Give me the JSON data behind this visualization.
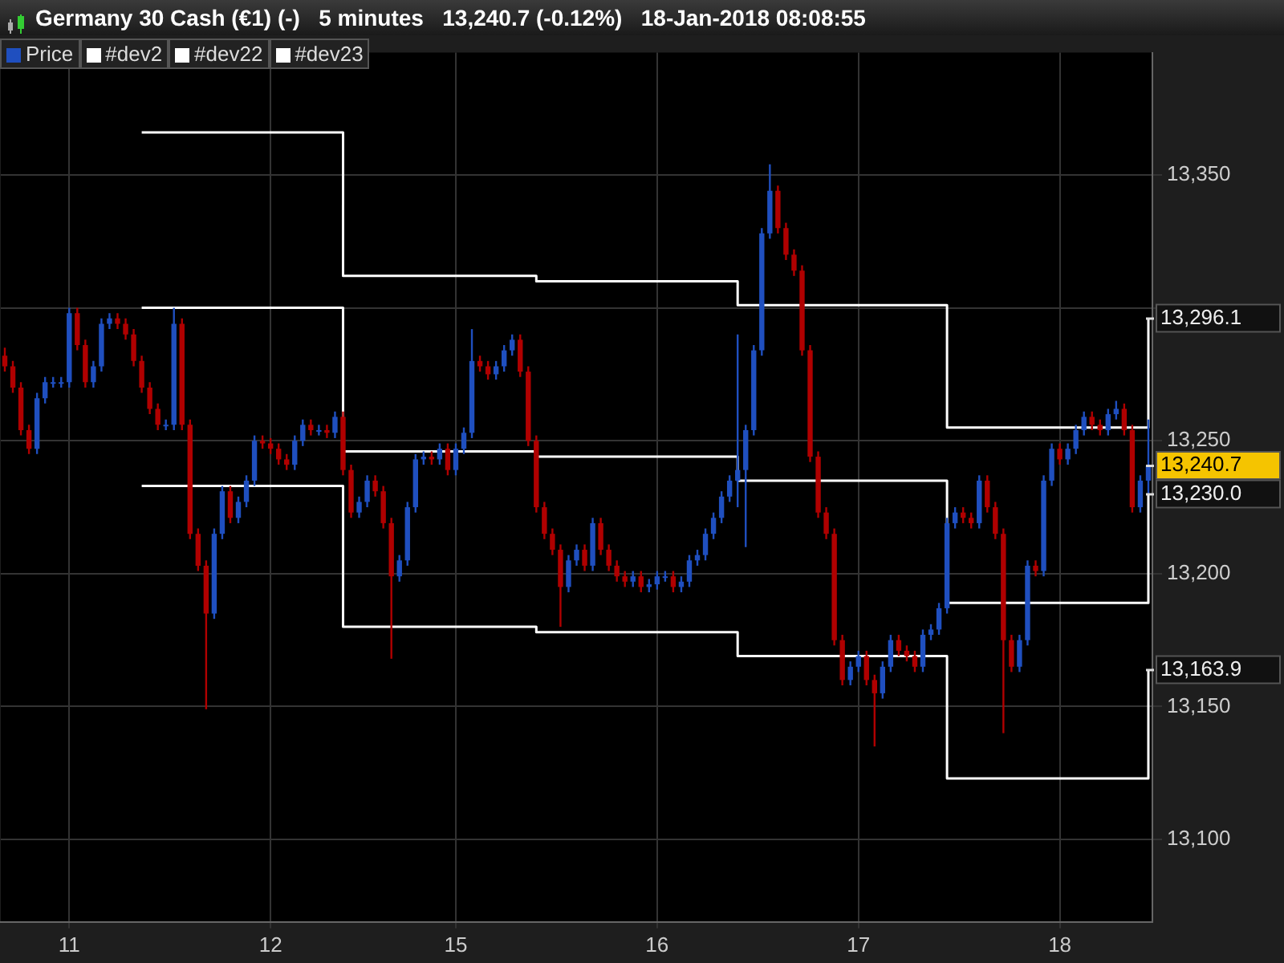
{
  "chart_data": {
    "type": "candlestick",
    "title": "Germany 30 Cash (€1) (-)   5 minutes   13,240.7 (-0.12%)   18-Jan-2018 08:08:55",
    "categories": [
      null,
      null,
      null,
      null,
      null,
      null,
      null,
      null,
      "11",
      null,
      null,
      null,
      null,
      null,
      null,
      null,
      null,
      null,
      null,
      null,
      null,
      null,
      null,
      null,
      null,
      null,
      null,
      null,
      null,
      null,
      null,
      null,
      null,
      "12",
      null,
      null,
      null,
      null,
      null,
      null,
      null,
      null,
      null,
      null,
      null,
      null,
      null,
      null,
      null,
      null,
      null,
      null,
      null,
      null,
      null,
      null,
      "15",
      null,
      null,
      null,
      null,
      null,
      null,
      null,
      null,
      null,
      null,
      null,
      null,
      null,
      null,
      null,
      null,
      null,
      null,
      null,
      null,
      null,
      null,
      null,
      null,
      "16",
      null,
      null,
      null,
      null,
      null,
      null,
      null,
      null,
      null,
      null,
      null,
      null,
      null,
      null,
      null,
      null,
      null,
      null,
      null,
      null,
      null,
      null,
      null,
      null,
      "17",
      null,
      null,
      null,
      null,
      null,
      null,
      null,
      null,
      null,
      null,
      null,
      null,
      null,
      null,
      null,
      null,
      null,
      null,
      null,
      null,
      null,
      null,
      null,
      null,
      "18",
      null,
      null,
      null,
      null,
      null,
      null,
      null,
      null,
      null,
      null,
      null
    ],
    "ylim": [
      13069,
      13396
    ],
    "yticks": [
      {
        "value": 13100,
        "label": "13,100"
      },
      {
        "value": 13150,
        "label": "13,150"
      },
      {
        "value": 13200,
        "label": "13,200"
      },
      {
        "value": 13250,
        "label": "13,250"
      },
      {
        "value": 13300,
        "label": null
      },
      {
        "value": 13350,
        "label": "13,350"
      }
    ],
    "grid": true,
    "legend": "top left",
    "series": [
      {
        "name": "Price",
        "color": "#1f4fbf",
        "value_labels": [
          null,
          null,
          null,
          null,
          null,
          null,
          null,
          null,
          null,
          null,
          null,
          null,
          null,
          null,
          null,
          null,
          null,
          null,
          null,
          null,
          null,
          null,
          null,
          null,
          null,
          null,
          null,
          null,
          null,
          null,
          null,
          null,
          null,
          null,
          null,
          null,
          null,
          null,
          null,
          null,
          null,
          null,
          null,
          null,
          null,
          null,
          null,
          null,
          null,
          null,
          null,
          null,
          null,
          null,
          null,
          null,
          null,
          null,
          null,
          null,
          null,
          null,
          null,
          null,
          null,
          null,
          null,
          null,
          null,
          null,
          null,
          null,
          null,
          null,
          null,
          null,
          null,
          null,
          null,
          null,
          null,
          null,
          null,
          null,
          null,
          null,
          null,
          null,
          null,
          null,
          null,
          null,
          null,
          null,
          null,
          null,
          null,
          null,
          null,
          null,
          null,
          null,
          null,
          null,
          null,
          null,
          null,
          null,
          null,
          null,
          null,
          null,
          null,
          null,
          null,
          null,
          null,
          null,
          null,
          null,
          null,
          null,
          null,
          null,
          null,
          null,
          null,
          null,
          null,
          null,
          null,
          null,
          null,
          null,
          null,
          null,
          null,
          null,
          null,
          null,
          null,
          null,
          "13,240.7"
        ],
        "ohlc": [
          [
            13282,
            13285,
            13276,
            13278
          ],
          [
            13278,
            13280,
            13268,
            13270
          ],
          [
            13270,
            13272,
            13252,
            13254
          ],
          [
            13254,
            13256,
            13245,
            13247
          ],
          [
            13247,
            13268,
            13245,
            13266
          ],
          [
            13266,
            13274,
            13264,
            13272
          ],
          [
            13272,
            13274,
            13270,
            13272
          ],
          [
            13272,
            13274,
            13270,
            13272
          ],
          [
            13272,
            13300,
            13270,
            13298
          ],
          [
            13298,
            13300,
            13284,
            13286
          ],
          [
            13286,
            13288,
            13270,
            13272
          ],
          [
            13272,
            13280,
            13270,
            13278
          ],
          [
            13278,
            13296,
            13276,
            13294
          ],
          [
            13294,
            13298,
            13292,
            13296
          ],
          [
            13296,
            13298,
            13292,
            13294
          ],
          [
            13294,
            13296,
            13288,
            13290
          ],
          [
            13290,
            13292,
            13278,
            13280
          ],
          [
            13280,
            13282,
            13268,
            13270
          ],
          [
            13270,
            13272,
            13260,
            13262
          ],
          [
            13262,
            13264,
            13254,
            13256
          ],
          [
            13256,
            13258,
            13254,
            13256
          ],
          [
            13256,
            13300,
            13254,
            13294
          ],
          [
            13294,
            13296,
            13254,
            13256
          ],
          [
            13256,
            13258,
            13213,
            13215
          ],
          [
            13215,
            13217,
            13201,
            13203
          ],
          [
            13203,
            13205,
            13149,
            13185
          ],
          [
            13185,
            13217,
            13183,
            13215
          ],
          [
            13215,
            13233,
            13213,
            13231
          ],
          [
            13231,
            13233,
            13219,
            13221
          ],
          [
            13221,
            13229,
            13219,
            13227
          ],
          [
            13227,
            13237,
            13225,
            13235
          ],
          [
            13235,
            13252,
            13233,
            13250
          ],
          [
            13250,
            13252,
            13247,
            13249
          ],
          [
            13249,
            13251,
            13245,
            13247
          ],
          [
            13247,
            13249,
            13241,
            13243
          ],
          [
            13243,
            13245,
            13239,
            13241
          ],
          [
            13241,
            13252,
            13239,
            13250
          ],
          [
            13250,
            13258,
            13248,
            13256
          ],
          [
            13256,
            13258,
            13252,
            13254
          ],
          [
            13254,
            13256,
            13252,
            13254
          ],
          [
            13254,
            13256,
            13251,
            13253
          ],
          [
            13253,
            13261,
            13251,
            13259
          ],
          [
            13259,
            13261,
            13237,
            13239
          ],
          [
            13239,
            13241,
            13221,
            13223
          ],
          [
            13223,
            13229,
            13221,
            13227
          ],
          [
            13227,
            13237,
            13225,
            13235
          ],
          [
            13235,
            13237,
            13229,
            13231
          ],
          [
            13231,
            13233,
            13217,
            13219
          ],
          [
            13219,
            13221,
            13168,
            13199
          ],
          [
            13199,
            13207,
            13197,
            13205
          ],
          [
            13205,
            13227,
            13203,
            13225
          ],
          [
            13225,
            13245,
            13223,
            13243
          ],
          [
            13243,
            13246,
            13241,
            13244
          ],
          [
            13244,
            13246,
            13241,
            13243
          ],
          [
            13243,
            13249,
            13241,
            13247
          ],
          [
            13247,
            13249,
            13237,
            13239
          ],
          [
            13239,
            13249,
            13237,
            13247
          ],
          [
            13247,
            13255,
            13245,
            13253
          ],
          [
            13253,
            13292,
            13251,
            13280
          ],
          [
            13280,
            13282,
            13276,
            13278
          ],
          [
            13278,
            13280,
            13273,
            13275
          ],
          [
            13275,
            13280,
            13273,
            13278
          ],
          [
            13278,
            13286,
            13276,
            13284
          ],
          [
            13284,
            13290,
            13282,
            13288
          ],
          [
            13288,
            13290,
            13274,
            13276
          ],
          [
            13276,
            13278,
            13248,
            13250
          ],
          [
            13250,
            13252,
            13223,
            13225
          ],
          [
            13225,
            13227,
            13213,
            13215
          ],
          [
            13215,
            13217,
            13207,
            13209
          ],
          [
            13209,
            13211,
            13180,
            13195
          ],
          [
            13195,
            13207,
            13193,
            13205
          ],
          [
            13205,
            13211,
            13203,
            13209
          ],
          [
            13209,
            13211,
            13201,
            13203
          ],
          [
            13203,
            13221,
            13201,
            13219
          ],
          [
            13219,
            13221,
            13207,
            13209
          ],
          [
            13209,
            13211,
            13201,
            13203
          ],
          [
            13203,
            13205,
            13197,
            13199
          ],
          [
            13199,
            13201,
            13195,
            13197
          ],
          [
            13197,
            13201,
            13195,
            13199
          ],
          [
            13199,
            13201,
            13193,
            13195
          ],
          [
            13195,
            13198,
            13193,
            13196
          ],
          [
            13196,
            13201,
            13194,
            13199
          ],
          [
            13199,
            13201,
            13197,
            13199
          ],
          [
            13199,
            13201,
            13193,
            13195
          ],
          [
            13195,
            13199,
            13193,
            13197
          ],
          [
            13197,
            13207,
            13195,
            13205
          ],
          [
            13205,
            13209,
            13203,
            13207
          ],
          [
            13207,
            13217,
            13205,
            13215
          ],
          [
            13215,
            13223,
            13213,
            13221
          ],
          [
            13221,
            13231,
            13219,
            13229
          ],
          [
            13229,
            13237,
            13227,
            13235
          ],
          [
            13235,
            13290,
            13225,
            13239
          ],
          [
            13239,
            13256,
            13210,
            13254
          ],
          [
            13254,
            13286,
            13252,
            13284
          ],
          [
            13284,
            13330,
            13282,
            13328
          ],
          [
            13328,
            13354,
            13326,
            13344
          ],
          [
            13344,
            13346,
            13328,
            13330
          ],
          [
            13330,
            13332,
            13318,
            13320
          ],
          [
            13320,
            13322,
            13312,
            13314
          ],
          [
            13314,
            13316,
            13282,
            13284
          ],
          [
            13284,
            13286,
            13242,
            13244
          ],
          [
            13244,
            13246,
            13221,
            13223
          ],
          [
            13223,
            13225,
            13213,
            13215
          ],
          [
            13215,
            13217,
            13173,
            13175
          ],
          [
            13175,
            13177,
            13158,
            13160
          ],
          [
            13160,
            13167,
            13158,
            13165
          ],
          [
            13165,
            13171,
            13163,
            13169
          ],
          [
            13169,
            13171,
            13158,
            13160
          ],
          [
            13160,
            13162,
            13135,
            13155
          ],
          [
            13155,
            13167,
            13153,
            13165
          ],
          [
            13165,
            13177,
            13163,
            13175
          ],
          [
            13175,
            13177,
            13169,
            13171
          ],
          [
            13171,
            13173,
            13167,
            13169
          ],
          [
            13169,
            13171,
            13163,
            13165
          ],
          [
            13165,
            13179,
            13163,
            13177
          ],
          [
            13177,
            13181,
            13175,
            13179
          ],
          [
            13179,
            13189,
            13177,
            13187
          ],
          [
            13187,
            13221,
            13185,
            13219
          ],
          [
            13219,
            13225,
            13217,
            13223
          ],
          [
            13223,
            13225,
            13219,
            13221
          ],
          [
            13221,
            13223,
            13217,
            13219
          ],
          [
            13219,
            13237,
            13217,
            13235
          ],
          [
            13235,
            13237,
            13223,
            13225
          ],
          [
            13225,
            13227,
            13213,
            13215
          ],
          [
            13215,
            13217,
            13140,
            13175
          ],
          [
            13175,
            13177,
            13163,
            13165
          ],
          [
            13165,
            13177,
            13163,
            13175
          ],
          [
            13175,
            13205,
            13173,
            13203
          ],
          [
            13203,
            13205,
            13199,
            13201
          ],
          [
            13201,
            13237,
            13199,
            13235
          ],
          [
            13235,
            13249,
            13233,
            13247
          ],
          [
            13247,
            13249,
            13241,
            13243
          ],
          [
            13243,
            13249,
            13241,
            13247
          ],
          [
            13247,
            13256,
            13245,
            13254
          ],
          [
            13254,
            13261,
            13252,
            13259
          ],
          [
            13259,
            13261,
            13254,
            13256
          ],
          [
            13256,
            13258,
            13252,
            13254
          ],
          [
            13254,
            13262,
            13252,
            13260
          ],
          [
            13260,
            13265,
            13258,
            13262
          ],
          [
            13262,
            13264,
            13252,
            13254
          ],
          [
            13254,
            13256,
            13223,
            13225
          ],
          [
            13225,
            13237,
            13223,
            13235
          ],
          [
            13235,
            13258,
            13230,
            13240.7
          ]
        ],
        "colors": [
          "#b00000",
          "#b00000",
          "#b00000",
          "#b00000",
          "#1f4fbf",
          "#1f4fbf",
          "#1f4fbf",
          "#1f4fbf",
          "#1f4fbf",
          "#b00000",
          "#b00000",
          "#1f4fbf",
          "#1f4fbf",
          "#1f4fbf",
          "#b00000",
          "#b00000",
          "#b00000",
          "#b00000",
          "#b00000",
          "#b00000",
          "#1f4fbf",
          "#1f4fbf",
          "#b00000",
          "#b00000",
          "#b00000",
          "#b00000",
          "#1f4fbf",
          "#1f4fbf",
          "#b00000",
          "#1f4fbf",
          "#1f4fbf",
          "#1f4fbf",
          "#b00000",
          "#b00000",
          "#b00000",
          "#b00000",
          "#1f4fbf",
          "#1f4fbf",
          "#b00000",
          "#1f4fbf",
          "#b00000",
          "#1f4fbf",
          "#b00000",
          "#b00000",
          "#1f4fbf",
          "#1f4fbf",
          "#b00000",
          "#b00000",
          "#b00000",
          "#1f4fbf",
          "#1f4fbf",
          "#1f4fbf",
          "#1f4fbf",
          "#b00000",
          "#1f4fbf",
          "#b00000",
          "#1f4fbf",
          "#1f4fbf",
          "#1f4fbf",
          "#b00000",
          "#b00000",
          "#1f4fbf",
          "#1f4fbf",
          "#1f4fbf",
          "#b00000",
          "#b00000",
          "#b00000",
          "#b00000",
          "#b00000",
          "#b00000",
          "#1f4fbf",
          "#1f4fbf",
          "#b00000",
          "#1f4fbf",
          "#b00000",
          "#b00000",
          "#b00000",
          "#b00000",
          "#1f4fbf",
          "#b00000",
          "#1f4fbf",
          "#1f4fbf",
          "#1f4fbf",
          "#b00000",
          "#1f4fbf",
          "#1f4fbf",
          "#1f4fbf",
          "#1f4fbf",
          "#1f4fbf",
          "#1f4fbf",
          "#1f4fbf",
          "#1f4fbf",
          "#1f4fbf",
          "#1f4fbf",
          "#1f4fbf",
          "#1f4fbf",
          "#b00000",
          "#b00000",
          "#b00000",
          "#b00000",
          "#b00000",
          "#b00000",
          "#b00000",
          "#b00000",
          "#b00000",
          "#1f4fbf",
          "#1f4fbf",
          "#b00000",
          "#b00000",
          "#1f4fbf",
          "#1f4fbf",
          "#b00000",
          "#b00000",
          "#b00000",
          "#1f4fbf",
          "#1f4fbf",
          "#1f4fbf",
          "#1f4fbf",
          "#1f4fbf",
          "#b00000",
          "#b00000",
          "#1f4fbf",
          "#b00000",
          "#b00000",
          "#b00000",
          "#b00000",
          "#1f4fbf",
          "#1f4fbf",
          "#b00000",
          "#1f4fbf",
          "#1f4fbf",
          "#b00000",
          "#1f4fbf",
          "#1f4fbf",
          "#1f4fbf",
          "#b00000",
          "#b00000",
          "#1f4fbf",
          "#1f4fbf",
          "#b00000",
          "#b00000",
          "#1f4fbf",
          "#1f4fbf"
        ]
      },
      {
        "name": "#dev2",
        "type": "step",
        "color": "#ffffff",
        "value_labels": [
          null,
          null,
          null,
          null,
          null,
          null,
          null,
          null,
          null,
          null,
          null,
          null,
          null,
          null,
          null,
          null,
          null,
          null,
          null,
          null,
          null,
          null,
          null,
          null,
          null,
          null,
          null,
          null,
          null,
          null,
          null,
          null,
          null,
          null,
          null,
          null,
          null,
          null,
          null,
          null,
          null,
          null,
          null,
          null,
          null,
          null,
          null,
          null,
          null,
          null,
          null,
          null,
          null,
          null,
          null,
          null,
          null,
          null,
          null,
          null,
          null,
          null,
          null,
          null,
          null,
          null,
          null,
          null,
          null,
          null,
          null,
          null,
          null,
          null,
          null,
          null,
          null,
          null,
          null,
          null,
          null,
          null,
          null,
          null,
          null,
          null,
          null,
          null,
          null,
          null,
          null,
          null,
          null,
          null,
          null,
          null,
          null,
          null,
          null,
          null,
          null,
          null,
          null,
          null,
          null,
          null,
          null,
          null,
          null,
          null,
          null,
          null,
          null,
          null,
          null,
          null,
          null,
          null,
          null,
          null,
          null,
          null,
          null,
          null,
          null,
          null,
          null,
          null,
          null,
          null,
          null,
          null,
          null,
          null,
          null,
          null,
          null,
          null,
          null,
          null,
          null,
          null,
          "13,296.1"
        ],
        "values": [
          null,
          null,
          null,
          null,
          null,
          null,
          null,
          null,
          null,
          null,
          null,
          null,
          null,
          null,
          null,
          null,
          null,
          13366,
          13366,
          13366,
          13366,
          13366,
          13366,
          13366,
          13366,
          13366,
          13366,
          13366,
          13366,
          13366,
          13366,
          13366,
          13366,
          13366,
          13366,
          13366,
          13366,
          13366,
          13366,
          13366,
          13366,
          13366,
          13312,
          13312,
          13312,
          13312,
          13312,
          13312,
          13312,
          13312,
          13312,
          13312,
          13312,
          13312,
          13312,
          13312,
          13312,
          13312,
          13312,
          13312,
          13312,
          13312,
          13312,
          13312,
          13312,
          13312,
          13310,
          13310,
          13310,
          13310,
          13310,
          13310,
          13310,
          13310,
          13310,
          13310,
          13310,
          13310,
          13310,
          13310,
          13310,
          13310,
          13310,
          13310,
          13310,
          13310,
          13310,
          13310,
          13310,
          13310,
          13310,
          13301,
          13301,
          13301,
          13301,
          13301,
          13301,
          13301,
          13301,
          13301,
          13301,
          13301,
          13301,
          13301,
          13301,
          13301,
          13301,
          13301,
          13301,
          13301,
          13301,
          13301,
          13301,
          13301,
          13301,
          13301,
          13301,
          13255,
          13255,
          13255,
          13255,
          13255,
          13255,
          13255,
          13255,
          13255,
          13255,
          13255,
          13255,
          13255,
          13255,
          13255,
          13255,
          13255,
          13255,
          13255,
          13255,
          13255,
          13255,
          13255,
          13255,
          13255,
          13296.1
        ]
      },
      {
        "name": "#dev22",
        "type": "step",
        "color": "#ffffff",
        "value_labels": [
          null,
          null,
          null,
          null,
          null,
          null,
          null,
          null,
          null,
          null,
          null,
          null,
          null,
          null,
          null,
          null,
          null,
          null,
          null,
          null,
          null,
          null,
          null,
          null,
          null,
          null,
          null,
          null,
          null,
          null,
          null,
          null,
          null,
          null,
          null,
          null,
          null,
          null,
          null,
          null,
          null,
          null,
          null,
          null,
          null,
          null,
          null,
          null,
          null,
          null,
          null,
          null,
          null,
          null,
          null,
          null,
          null,
          null,
          null,
          null,
          null,
          null,
          null,
          null,
          null,
          null,
          null,
          null,
          null,
          null,
          null,
          null,
          null,
          null,
          null,
          null,
          null,
          null,
          null,
          null,
          null,
          null,
          null,
          null,
          null,
          null,
          null,
          null,
          null,
          null,
          null,
          null,
          null,
          null,
          null,
          null,
          null,
          null,
          null,
          null,
          null,
          null,
          null,
          null,
          null,
          null,
          null,
          null,
          null,
          null,
          null,
          null,
          null,
          null,
          null,
          null,
          null,
          null,
          null,
          null,
          null,
          null,
          null,
          null,
          null,
          null,
          null,
          null,
          null,
          null,
          null,
          null,
          null,
          null,
          null,
          null,
          null,
          null,
          null,
          null,
          null,
          null,
          "13,230.0"
        ],
        "values": [
          null,
          null,
          null,
          null,
          null,
          null,
          null,
          null,
          null,
          null,
          null,
          null,
          null,
          null,
          null,
          null,
          null,
          13300,
          13300,
          13300,
          13300,
          13300,
          13300,
          13300,
          13300,
          13300,
          13300,
          13300,
          13300,
          13300,
          13300,
          13300,
          13300,
          13300,
          13300,
          13300,
          13300,
          13300,
          13300,
          13300,
          13300,
          13300,
          13246,
          13246,
          13246,
          13246,
          13246,
          13246,
          13246,
          13246,
          13246,
          13246,
          13246,
          13246,
          13246,
          13246,
          13246,
          13246,
          13246,
          13246,
          13246,
          13246,
          13246,
          13246,
          13246,
          13246,
          13244,
          13244,
          13244,
          13244,
          13244,
          13244,
          13244,
          13244,
          13244,
          13244,
          13244,
          13244,
          13244,
          13244,
          13244,
          13244,
          13244,
          13244,
          13244,
          13244,
          13244,
          13244,
          13244,
          13244,
          13244,
          13235,
          13235,
          13235,
          13235,
          13235,
          13235,
          13235,
          13235,
          13235,
          13235,
          13235,
          13235,
          13235,
          13235,
          13235,
          13235,
          13235,
          13235,
          13235,
          13235,
          13235,
          13235,
          13235,
          13235,
          13235,
          13235,
          13189,
          13189,
          13189,
          13189,
          13189,
          13189,
          13189,
          13189,
          13189,
          13189,
          13189,
          13189,
          13189,
          13189,
          13189,
          13189,
          13189,
          13189,
          13189,
          13189,
          13189,
          13189,
          13189,
          13189,
          13189,
          13230.0
        ]
      },
      {
        "name": "#dev23",
        "type": "step",
        "color": "#ffffff",
        "value_labels": [
          null,
          null,
          null,
          null,
          null,
          null,
          null,
          null,
          null,
          null,
          null,
          null,
          null,
          null,
          null,
          null,
          null,
          null,
          null,
          null,
          null,
          null,
          null,
          null,
          null,
          null,
          null,
          null,
          null,
          null,
          null,
          null,
          null,
          null,
          null,
          null,
          null,
          null,
          null,
          null,
          null,
          null,
          null,
          null,
          null,
          null,
          null,
          null,
          null,
          null,
          null,
          null,
          null,
          null,
          null,
          null,
          null,
          null,
          null,
          null,
          null,
          null,
          null,
          null,
          null,
          null,
          null,
          null,
          null,
          null,
          null,
          null,
          null,
          null,
          null,
          null,
          null,
          null,
          null,
          null,
          null,
          null,
          null,
          null,
          null,
          null,
          null,
          null,
          null,
          null,
          null,
          null,
          null,
          null,
          null,
          null,
          null,
          null,
          null,
          null,
          null,
          null,
          null,
          null,
          null,
          null,
          null,
          null,
          null,
          null,
          null,
          null,
          null,
          null,
          null,
          null,
          null,
          null,
          null,
          null,
          null,
          null,
          null,
          null,
          null,
          null,
          null,
          null,
          null,
          null,
          null,
          null,
          null,
          null,
          null,
          null,
          null,
          null,
          null,
          null,
          null,
          null,
          "13,163.9"
        ],
        "values": [
          null,
          null,
          null,
          null,
          null,
          null,
          null,
          null,
          null,
          null,
          null,
          null,
          null,
          null,
          null,
          null,
          null,
          13233,
          13233,
          13233,
          13233,
          13233,
          13233,
          13233,
          13233,
          13233,
          13233,
          13233,
          13233,
          13233,
          13233,
          13233,
          13233,
          13233,
          13233,
          13233,
          13233,
          13233,
          13233,
          13233,
          13233,
          13233,
          13180,
          13180,
          13180,
          13180,
          13180,
          13180,
          13180,
          13180,
          13180,
          13180,
          13180,
          13180,
          13180,
          13180,
          13180,
          13180,
          13180,
          13180,
          13180,
          13180,
          13180,
          13180,
          13180,
          13180,
          13178,
          13178,
          13178,
          13178,
          13178,
          13178,
          13178,
          13178,
          13178,
          13178,
          13178,
          13178,
          13178,
          13178,
          13178,
          13178,
          13178,
          13178,
          13178,
          13178,
          13178,
          13178,
          13178,
          13178,
          13178,
          13169,
          13169,
          13169,
          13169,
          13169,
          13169,
          13169,
          13169,
          13169,
          13169,
          13169,
          13169,
          13169,
          13169,
          13169,
          13169,
          13169,
          13169,
          13169,
          13169,
          13169,
          13169,
          13169,
          13169,
          13169,
          13169,
          13123,
          13123,
          13123,
          13123,
          13123,
          13123,
          13123,
          13123,
          13123,
          13123,
          13123,
          13123,
          13123,
          13123,
          13123,
          13123,
          13123,
          13123,
          13123,
          13123,
          13123,
          13123,
          13123,
          13123,
          13123,
          13163.9
        ]
      }
    ]
  }
}
